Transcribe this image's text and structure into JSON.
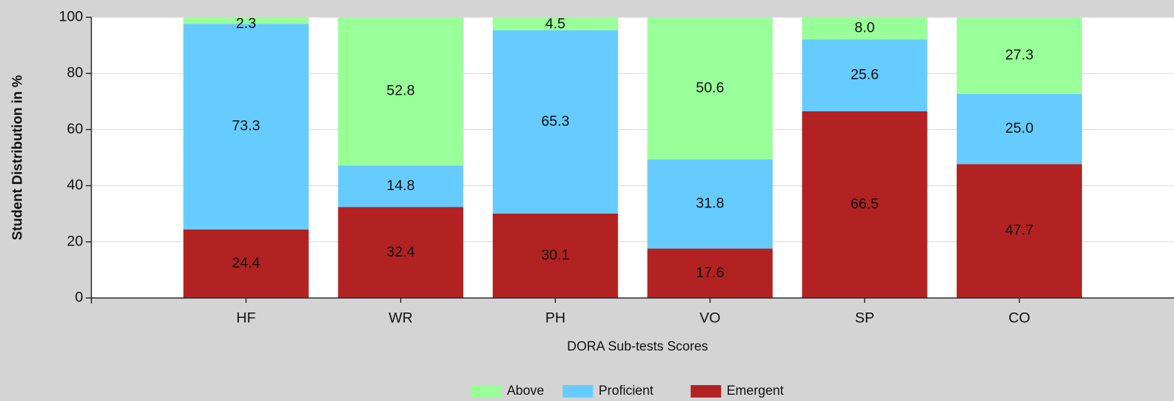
{
  "chart_data": {
    "type": "stacked_bar",
    "categories": [
      "HF",
      "WR",
      "PH",
      "VO",
      "SP",
      "CO"
    ],
    "series": [
      {
        "name": "Above",
        "color": "#99ff99",
        "values": [
          2.3,
          52.8,
          4.5,
          50.6,
          8.0,
          27.3
        ],
        "value_labels": [
          "2.3",
          "52.8",
          "4.5",
          "50.6",
          "8.0",
          "27.3"
        ]
      },
      {
        "name": "Proficient",
        "color": "#66ccff",
        "values": [
          73.3,
          14.8,
          65.3,
          31.8,
          25.6,
          25.0
        ],
        "value_labels": [
          "73.3",
          "14.8",
          "65.3",
          "31.8",
          "25.6",
          "25.0"
        ]
      },
      {
        "name": "Emergent",
        "color": "#b22222",
        "values": [
          24.4,
          32.4,
          30.1,
          17.6,
          66.5,
          47.7
        ],
        "value_labels": [
          "24.4",
          "32.4",
          "30.1",
          "17.6",
          "66.5",
          "47.7"
        ]
      }
    ],
    "ylabel": "Student Distribution in %",
    "xlabel": "DORA Sub-tests Scores",
    "ylim": [
      0,
      100
    ],
    "yticks": [
      0,
      20,
      40,
      60,
      80,
      100
    ],
    "grid": true,
    "legend": "bottom"
  }
}
